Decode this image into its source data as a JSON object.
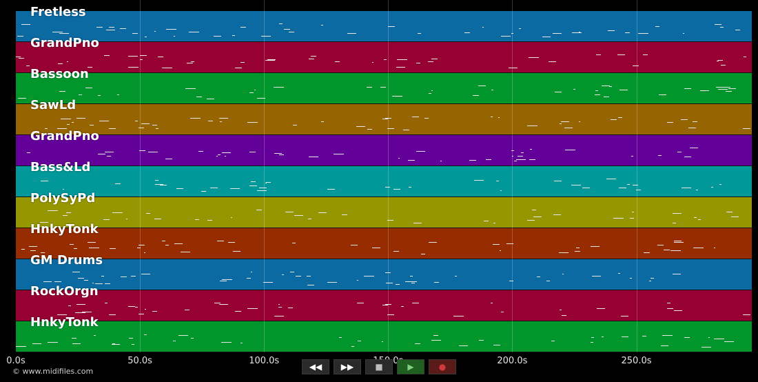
{
  "tracks": [
    {
      "name": "Fretless",
      "color": "#0b6aa2"
    },
    {
      "name": "GrandPno",
      "color": "#960032"
    },
    {
      "name": "Bassoon",
      "color": "#00962c"
    },
    {
      "name": "SawLd",
      "color": "#966400"
    },
    {
      "name": "GrandPno",
      "color": "#64009a"
    },
    {
      "name": "Bass&Ld",
      "color": "#009898"
    },
    {
      "name": "PolySyPd",
      "color": "#969600"
    },
    {
      "name": "HnkyTonk",
      "color": "#962c00"
    },
    {
      "name": "GM Drums",
      "color": "#0b6aa2"
    },
    {
      "name": "RockOrgn",
      "color": "#960032"
    },
    {
      "name": "HnkyTonk",
      "color": "#00962c"
    }
  ],
  "timeline": {
    "ticks": [
      "0.0s",
      "50.0s",
      "100.0s",
      "150.0s",
      "200.0s",
      "250.0s"
    ],
    "tick_values": [
      0,
      50,
      100,
      150,
      200,
      250
    ],
    "total_seconds": 296.5
  },
  "transport": {
    "buttons": [
      {
        "name": "rewind-icon",
        "glyph": "◀◀"
      },
      {
        "name": "fast-forward-icon",
        "glyph": "▶▶"
      },
      {
        "name": "stop-icon",
        "glyph": "■"
      },
      {
        "name": "play-icon",
        "glyph": "▶"
      },
      {
        "name": "record-icon",
        "glyph": "●"
      }
    ]
  },
  "footer": {
    "copyright": "© www.midifiles.com"
  }
}
